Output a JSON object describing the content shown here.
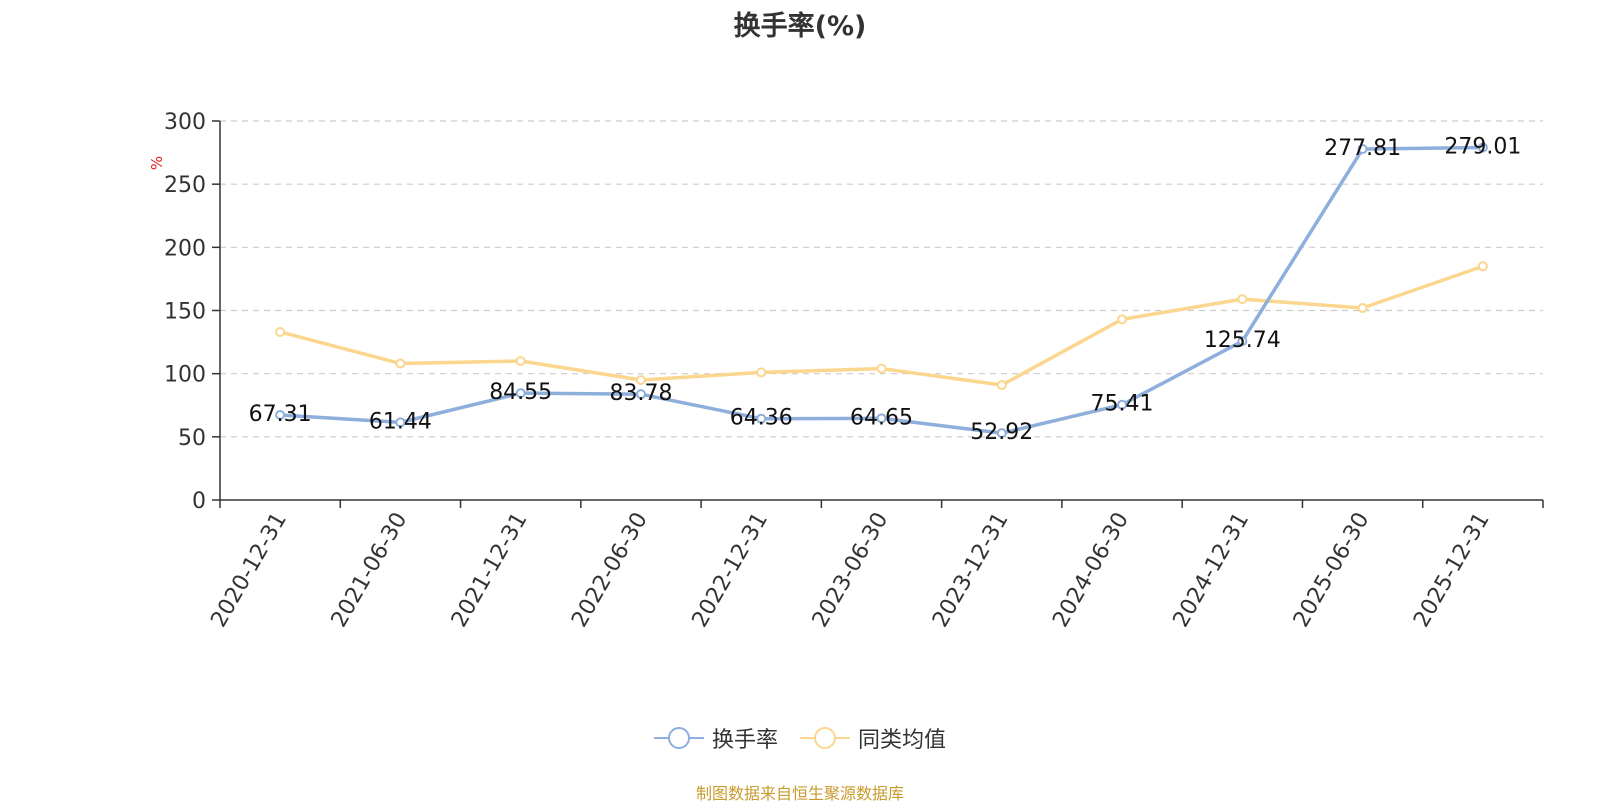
{
  "chart_data": {
    "type": "line",
    "title": "换手率(%)",
    "ylabel": "%",
    "ylim": [
      0,
      300
    ],
    "yticks": [
      0,
      50,
      100,
      150,
      200,
      250,
      300
    ],
    "categories": [
      "2020-12-31",
      "2021-06-30",
      "2021-12-31",
      "2022-06-30",
      "2022-12-31",
      "2023-06-30",
      "2023-12-31",
      "2024-06-30",
      "2024-12-31",
      "2025-06-30",
      "2025-12-31"
    ],
    "series": [
      {
        "name": "换手率",
        "color": "#8eaedb",
        "values": [
          67.31,
          61.44,
          84.55,
          83.78,
          64.36,
          64.65,
          52.92,
          75.41,
          125.74,
          277.81,
          279.01
        ],
        "labels": [
          "67.31",
          "61.44",
          "84.55",
          "83.78",
          "64.36",
          "64.65",
          "52.92",
          "75.41",
          "125.74",
          "277.81",
          "279.01"
        ]
      },
      {
        "name": "同类均值",
        "color": "#fbd68f",
        "values": [
          133,
          108,
          110,
          95,
          101,
          104,
          91,
          143,
          159,
          152,
          185
        ]
      }
    ],
    "grid": true,
    "legend_position": "bottom-center",
    "source": "制图数据来自恒生聚源数据库"
  }
}
